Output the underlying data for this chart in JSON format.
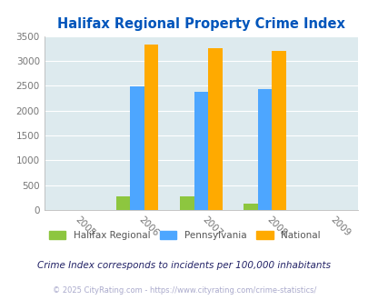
{
  "title": "Halifax Regional Property Crime Index",
  "years": [
    2005,
    2006,
    2007,
    2008,
    2009
  ],
  "bar_years": [
    2006,
    2007,
    2008
  ],
  "halifax": [
    270,
    275,
    130
  ],
  "pennsylvania": [
    2480,
    2380,
    2440
  ],
  "national": [
    3330,
    3260,
    3200
  ],
  "bar_width": 0.22,
  "colors": {
    "halifax": "#8dc63f",
    "pennsylvania": "#4da6ff",
    "national": "#ffaa00"
  },
  "ylim": [
    0,
    3500
  ],
  "yticks": [
    0,
    500,
    1000,
    1500,
    2000,
    2500,
    3000,
    3500
  ],
  "background_color": "#ddeaee",
  "title_color": "#0055bb",
  "legend_labels": [
    "Halifax Regional",
    "Pennsylvania",
    "National"
  ],
  "footnote1": "Crime Index corresponds to incidents per 100,000 inhabitants",
  "footnote2": "© 2025 CityRating.com - https://www.cityrating.com/crime-statistics/",
  "grid_color": "#ffffff",
  "axis_color": "#bbbbbb",
  "footnote1_color": "#222266",
  "footnote2_color": "#aaaacc",
  "tick_color": "#777777"
}
